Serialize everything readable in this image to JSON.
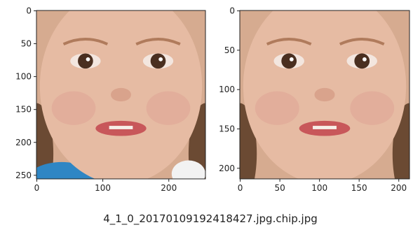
{
  "panels": [
    {
      "xlim": [
        -0.5,
        255.5
      ],
      "ylim": [
        255.5,
        -0.5
      ],
      "xticks": [
        0,
        100,
        200
      ],
      "yticks": [
        0,
        50,
        100,
        150,
        200,
        250
      ]
    },
    {
      "xlim": [
        -0.5,
        213.5
      ],
      "ylim": [
        213.5,
        -0.5
      ],
      "xticks": [
        0,
        50,
        100,
        150,
        200
      ],
      "yticks": [
        0,
        50,
        100,
        150,
        200
      ]
    }
  ],
  "caption": "4_1_0_20170109192418427.jpg.chip.jpg"
}
